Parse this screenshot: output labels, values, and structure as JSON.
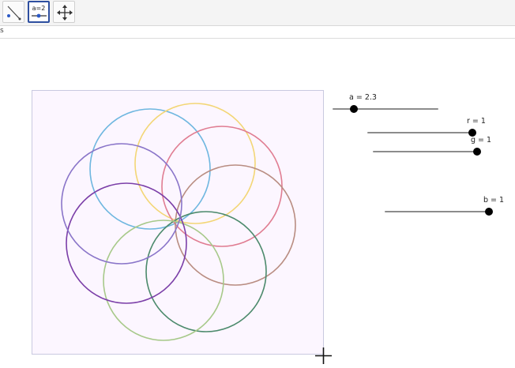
{
  "toolbar": {
    "tools": [
      {
        "icon": "line-tool-icon"
      },
      {
        "icon": "slider-tool-icon",
        "label": "a=2",
        "active": true
      },
      {
        "icon": "move-graphics-view-icon"
      }
    ]
  },
  "subbar": {
    "text": "s"
  },
  "sliders": [
    {
      "label": "a = 2.3",
      "fraction": 0.2
    },
    {
      "label": "r = 1",
      "fraction": 1.0
    },
    {
      "label": "g = 1",
      "fraction": 1.0
    },
    {
      "label": "b = 1",
      "fraction": 1.0
    }
  ],
  "figure": {
    "circle_colors": [
      "#6fb7e0",
      "#f3d676",
      "#e07d92",
      "#b98d82",
      "#4c8a6c",
      "#a7c98a",
      "#7b3fa8",
      "#8a75c9"
    ]
  }
}
